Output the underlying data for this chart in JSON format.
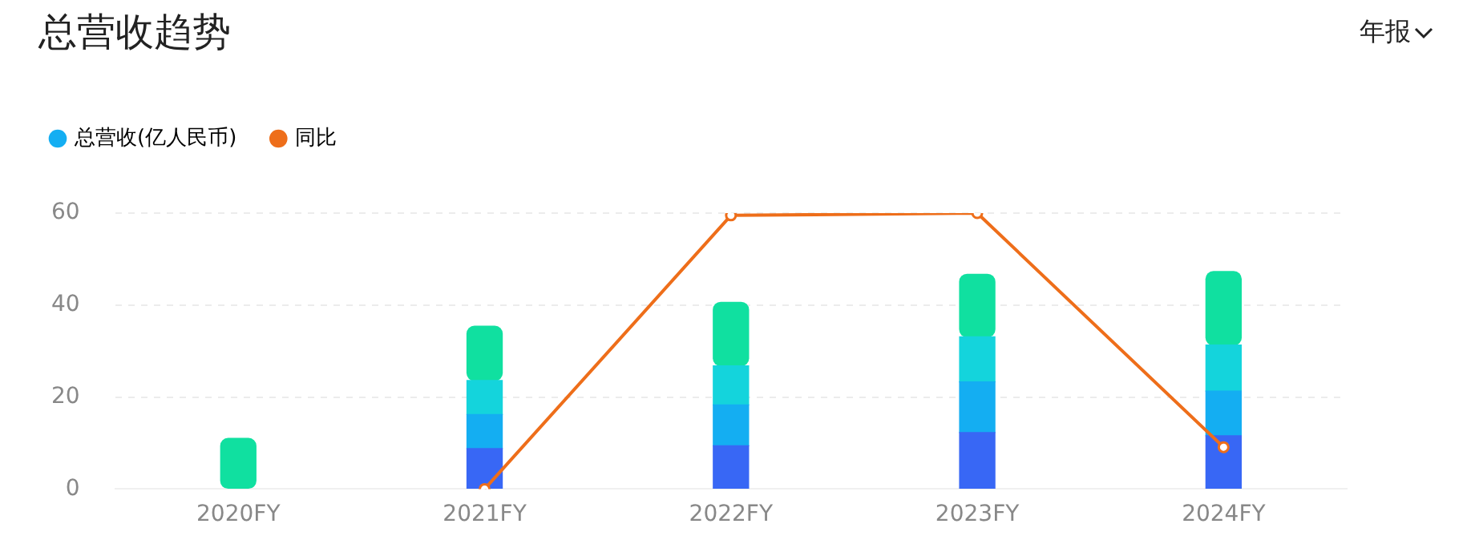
{
  "chart_data": {
    "type": "bar",
    "title": "总营收趋势",
    "annotations": [
      "年报"
    ],
    "categories": [
      "2020FY",
      "2021FY",
      "2022FY",
      "2023FY",
      "2024FY"
    ],
    "stacked": true,
    "series": [
      {
        "color": "#3867f5",
        "values": [
          null,
          8.8,
          9.4,
          12.3,
          11.6
        ]
      },
      {
        "name": "总营收(亿人民币)",
        "color": "#14aef2",
        "values": [
          null,
          7.4,
          8.9,
          11,
          9.7
        ]
      },
      {
        "color": "#14d4dc",
        "values": [
          null,
          7.4,
          8.5,
          9.8,
          10
        ]
      },
      {
        "color": "#10e0a0",
        "values": [
          11,
          11.8,
          13.8,
          13.6,
          16
        ]
      },
      {
        "name": "同比",
        "type": "line",
        "color": "#ee6e1a",
        "values": [
          null,
          0,
          59.5,
          60,
          9.1
        ]
      }
    ],
    "ylim": [
      0,
      60
    ],
    "yticks": [
      0,
      20,
      40,
      60
    ],
    "grid": "y",
    "legend": "top left",
    "marker": "circle",
    "line_style": "solid"
  }
}
